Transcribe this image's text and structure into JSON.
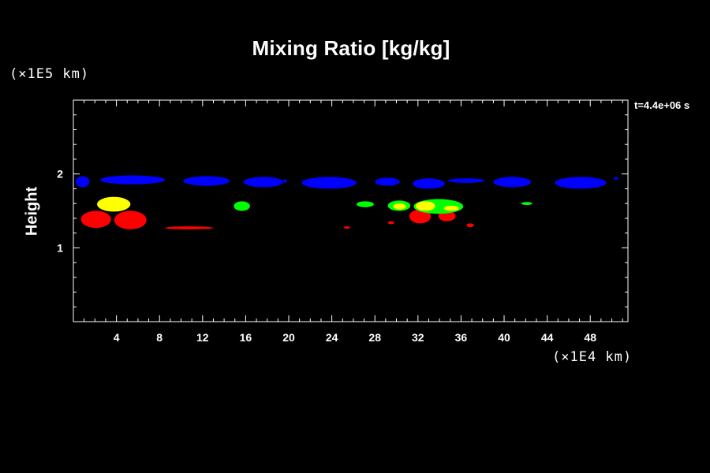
{
  "chart_data": {
    "type": "heatmap",
    "title": "Mixing Ratio [kg/kg]",
    "xlabel": "",
    "ylabel": "Height",
    "x_unit_label": "(×1E4 km)",
    "y_unit_label": "(×1E5 km)",
    "time_label": "t=4.4e+06 s",
    "xlim": [
      0,
      51.5
    ],
    "ylim": [
      0,
      3
    ],
    "x_ticks": [
      4,
      8,
      12,
      16,
      20,
      24,
      28,
      32,
      36,
      40,
      44,
      48
    ],
    "y_ticks": [
      1,
      2
    ],
    "grid": false,
    "levels": [
      {
        "name": "blue",
        "color": "#0000ff"
      },
      {
        "name": "red",
        "color": "#ff0000"
      },
      {
        "name": "green",
        "color": "#00ff00"
      },
      {
        "name": "yellow",
        "color": "#ffff00"
      }
    ],
    "regions": [
      {
        "level": "blue",
        "x": [
          0.2,
          1.5
        ],
        "y": [
          1.82,
          1.97
        ]
      },
      {
        "level": "blue",
        "x": [
          2.5,
          8.5
        ],
        "y": [
          1.86,
          1.98
        ]
      },
      {
        "level": "blue",
        "x": [
          10.2,
          14.5
        ],
        "y": [
          1.84,
          1.97
        ]
      },
      {
        "level": "blue",
        "x": [
          15.8,
          19.5
        ],
        "y": [
          1.82,
          1.96
        ]
      },
      {
        "level": "blue",
        "x": [
          21.2,
          26.3
        ],
        "y": [
          1.8,
          1.96
        ]
      },
      {
        "level": "blue",
        "x": [
          28.0,
          30.3
        ],
        "y": [
          1.84,
          1.95
        ]
      },
      {
        "level": "blue",
        "x": [
          31.5,
          34.5
        ],
        "y": [
          1.8,
          1.94
        ]
      },
      {
        "level": "blue",
        "x": [
          34.8,
          38.2
        ],
        "y": [
          1.88,
          1.94
        ]
      },
      {
        "level": "blue",
        "x": [
          39.0,
          42.5
        ],
        "y": [
          1.82,
          1.96
        ]
      },
      {
        "level": "blue",
        "x": [
          44.7,
          49.5
        ],
        "y": [
          1.8,
          1.96
        ]
      },
      {
        "level": "blue",
        "x": [
          19.5,
          19.8
        ],
        "y": [
          1.88,
          1.93
        ]
      },
      {
        "level": "blue",
        "x": [
          50.2,
          50.6
        ],
        "y": [
          1.92,
          1.96
        ]
      },
      {
        "level": "red",
        "x": [
          0.7,
          3.5
        ],
        "y": [
          1.27,
          1.5
        ]
      },
      {
        "level": "red",
        "x": [
          3.8,
          6.8
        ],
        "y": [
          1.25,
          1.5
        ]
      },
      {
        "level": "red",
        "x": [
          8.5,
          13.0
        ],
        "y": [
          1.25,
          1.29
        ]
      },
      {
        "level": "red",
        "x": [
          25.1,
          25.7
        ],
        "y": [
          1.26,
          1.29
        ]
      },
      {
        "level": "red",
        "x": [
          29.2,
          29.8
        ],
        "y": [
          1.32,
          1.36
        ]
      },
      {
        "level": "red",
        "x": [
          31.2,
          33.2
        ],
        "y": [
          1.33,
          1.52
        ]
      },
      {
        "level": "red",
        "x": [
          33.9,
          35.5
        ],
        "y": [
          1.36,
          1.5
        ]
      },
      {
        "level": "red",
        "x": [
          36.5,
          37.2
        ],
        "y": [
          1.28,
          1.33
        ]
      },
      {
        "level": "green",
        "x": [
          14.9,
          16.4
        ],
        "y": [
          1.5,
          1.63
        ]
      },
      {
        "level": "green",
        "x": [
          26.3,
          27.9
        ],
        "y": [
          1.55,
          1.63
        ]
      },
      {
        "level": "green",
        "x": [
          29.2,
          31.3
        ],
        "y": [
          1.5,
          1.64
        ]
      },
      {
        "level": "green",
        "x": [
          31.6,
          36.2
        ],
        "y": [
          1.46,
          1.66
        ]
      },
      {
        "level": "green",
        "x": [
          41.6,
          42.6
        ],
        "y": [
          1.58,
          1.62
        ]
      },
      {
        "level": "yellow",
        "x": [
          2.2,
          5.3
        ],
        "y": [
          1.49,
          1.69
        ]
      },
      {
        "level": "yellow",
        "x": [
          29.7,
          30.9
        ],
        "y": [
          1.52,
          1.6
        ]
      },
      {
        "level": "yellow",
        "x": [
          31.8,
          33.6
        ],
        "y": [
          1.5,
          1.63
        ]
      },
      {
        "level": "yellow",
        "x": [
          34.4,
          35.8
        ],
        "y": [
          1.5,
          1.57
        ]
      }
    ]
  }
}
